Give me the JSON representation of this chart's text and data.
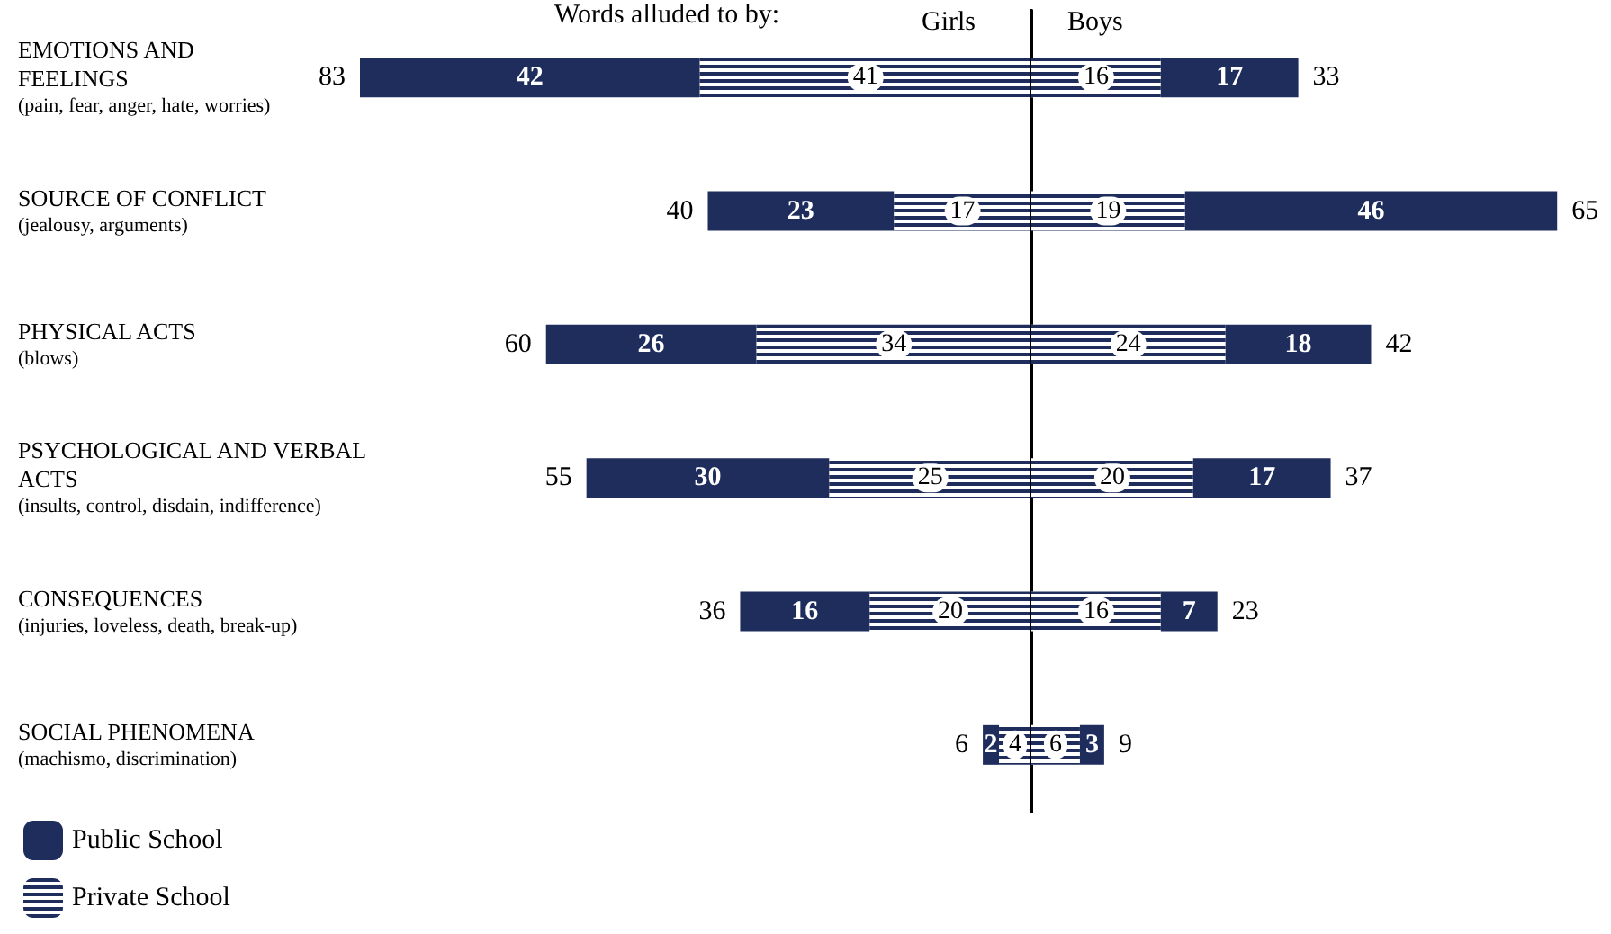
{
  "chart_data": [
    {
      "type": "bar",
      "orientation": "horizontal",
      "stacked": true,
      "title": "Girls",
      "annotations": [
        "Words alluded to by:"
      ],
      "categories": [
        "EMOTIONS AND\nFEELINGS\n(pain, fear, anger, hate, worries)",
        "SOURCE OF CONFLICT\n(jealousy, arguments)",
        "PHYSICAL ACTS\n(blows)",
        "PSYCHOLOGICAL AND VERBAL\nACTS\n(insults, control, disdain, indifference)",
        "CONSEQUENCES\n(injuries, loveless, death, break-up)",
        "SOCIAL PHENOMENA\n(machismo, discrimination)"
      ],
      "series": [
        {
          "name": "Private School",
          "color": "#1f2d5c",
          "values": [
            41,
            17,
            34,
            25,
            20,
            4
          ]
        },
        {
          "name": "Public School",
          "color": "#1f2d5c",
          "values": [
            42,
            23,
            26,
            30,
            16,
            2
          ]
        }
      ],
      "totals": [
        "83",
        "40",
        "60",
        "55",
        "36",
        "6"
      ],
      "data_labels": true,
      "legend": "bottom left",
      "tick_labels": "y",
      "grid": false
    },
    {
      "type": "bar",
      "orientation": "horizontal",
      "stacked": true,
      "title": "Boys",
      "categories": [
        null,
        null,
        null,
        null,
        null,
        null
      ],
      "series": [
        {
          "color": "#1f2d5c",
          "values": [
            16,
            19,
            24,
            20,
            16,
            6
          ]
        },
        {
          "color": "#1f2d5c",
          "values": [
            17,
            46,
            18,
            17,
            7,
            3
          ]
        }
      ],
      "totals": [
        "33",
        "65",
        "42",
        "37",
        "23",
        "9"
      ],
      "data_labels": true,
      "tick_labels": false,
      "grid": false
    }
  ]
}
